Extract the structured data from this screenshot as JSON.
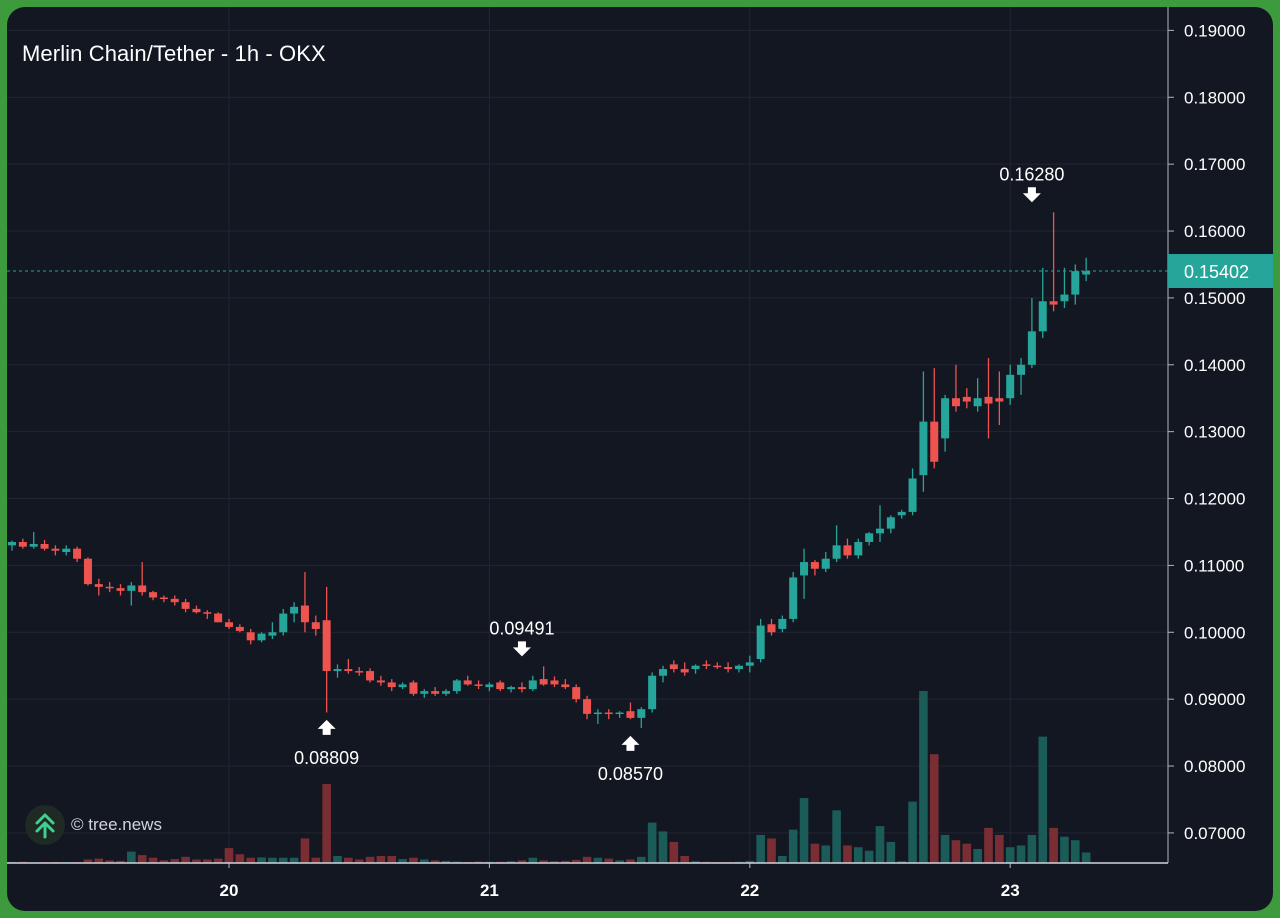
{
  "chart_data": {
    "type": "candlestick",
    "title": "Merlin Chain/Tether - 1h - OKX",
    "watermark": "© tree.news",
    "y_ticks": [
      "0.19000",
      "0.18000",
      "0.17000",
      "0.16000",
      "0.15000",
      "0.14000",
      "0.13000",
      "0.12000",
      "0.11000",
      "0.10000",
      "0.09000",
      "0.08000",
      "0.07000"
    ],
    "ylim": [
      0.0655,
      0.1935
    ],
    "x_ticks": [
      {
        "label": "20",
        "index": 20
      },
      {
        "label": "21",
        "index": 44
      },
      {
        "label": "22",
        "index": 68
      },
      {
        "label": "23",
        "index": 92
      }
    ],
    "last_price": {
      "value": 0.15402,
      "label": "0.15402"
    },
    "annotations": [
      {
        "label": "0.16280",
        "value": 0.1628,
        "index": 94,
        "direction": "down"
      },
      {
        "label": "0.09491",
        "value": 0.09491,
        "index": 47,
        "direction": "down"
      },
      {
        "label": "0.08809",
        "value": 0.08809,
        "index": 29,
        "direction": "up"
      },
      {
        "label": "0.08570",
        "value": 0.0857,
        "index": 57,
        "direction": "up"
      }
    ],
    "candles": [
      [
        0.113,
        0.1137,
        0.1122,
        0.1135,
        0.6
      ],
      [
        0.1135,
        0.114,
        0.1125,
        0.1128,
        0.7
      ],
      [
        0.1128,
        0.115,
        0.1125,
        0.1132,
        0.4
      ],
      [
        0.1132,
        0.1138,
        0.1122,
        0.1125,
        0.5
      ],
      [
        0.1125,
        0.113,
        0.1115,
        0.1122,
        0.6
      ],
      [
        0.112,
        0.113,
        0.1115,
        0.1125,
        0.5
      ],
      [
        0.1125,
        0.1128,
        0.1105,
        0.111,
        0.6
      ],
      [
        0.111,
        0.1112,
        0.107,
        0.1072,
        2.0
      ],
      [
        0.1072,
        0.108,
        0.1055,
        0.1068,
        2.5
      ],
      [
        0.1068,
        0.1075,
        0.106,
        0.1066,
        1.5
      ],
      [
        0.1066,
        0.1072,
        0.1055,
        0.1062,
        1.2
      ],
      [
        0.1062,
        0.1075,
        0.104,
        0.107,
        6.5
      ],
      [
        0.107,
        0.1105,
        0.1055,
        0.106,
        4.5
      ],
      [
        0.106,
        0.1062,
        0.1048,
        0.1052,
        3.0
      ],
      [
        0.1052,
        0.1055,
        0.1045,
        0.105,
        1.5
      ],
      [
        0.105,
        0.1055,
        0.104,
        0.1045,
        2.2
      ],
      [
        0.1045,
        0.105,
        0.103,
        0.1035,
        3.5
      ],
      [
        0.1035,
        0.104,
        0.1028,
        0.103,
        2.0
      ],
      [
        0.103,
        0.1033,
        0.102,
        0.1028,
        2.0
      ],
      [
        0.1028,
        0.103,
        0.1015,
        0.1015,
        2.5
      ],
      [
        0.1015,
        0.102,
        0.1005,
        0.1008,
        8.5
      ],
      [
        0.1008,
        0.1012,
        0.1,
        0.1002,
        5.0
      ],
      [
        0.1,
        0.1005,
        0.0982,
        0.0988,
        3.0
      ],
      [
        0.0988,
        0.1,
        0.0985,
        0.0998,
        3.2
      ],
      [
        0.0995,
        0.1015,
        0.099,
        0.1,
        3.0
      ],
      [
        0.1,
        0.1035,
        0.0995,
        0.1028,
        3.0
      ],
      [
        0.1028,
        0.1045,
        0.1015,
        0.1038,
        3.0
      ],
      [
        0.104,
        0.109,
        0.1,
        0.1015,
        14.0
      ],
      [
        0.1015,
        0.1025,
        0.0995,
        0.1005,
        3.0
      ],
      [
        0.1018,
        0.1068,
        0.088,
        0.0942,
        45.0
      ],
      [
        0.0942,
        0.0952,
        0.0932,
        0.0945,
        4.0
      ],
      [
        0.0945,
        0.096,
        0.0938,
        0.0942,
        3.0
      ],
      [
        0.0942,
        0.0948,
        0.0935,
        0.094,
        2.0
      ],
      [
        0.0942,
        0.0946,
        0.0925,
        0.0928,
        3.5
      ],
      [
        0.0928,
        0.0935,
        0.092,
        0.0925,
        4.0
      ],
      [
        0.0925,
        0.093,
        0.0912,
        0.0918,
        4.0
      ],
      [
        0.0918,
        0.0925,
        0.0915,
        0.0922,
        2.2
      ],
      [
        0.0925,
        0.0928,
        0.0905,
        0.0908,
        3.0
      ],
      [
        0.0908,
        0.0915,
        0.0902,
        0.0912,
        2.0
      ],
      [
        0.0912,
        0.0918,
        0.0905,
        0.0908,
        1.5
      ],
      [
        0.0908,
        0.0915,
        0.0905,
        0.0912,
        1.2
      ],
      [
        0.0912,
        0.093,
        0.0908,
        0.0928,
        0.8
      ],
      [
        0.0928,
        0.0935,
        0.092,
        0.0922,
        0.6
      ],
      [
        0.0922,
        0.0928,
        0.0915,
        0.092,
        0.8
      ],
      [
        0.0918,
        0.0925,
        0.0912,
        0.0922,
        0.7
      ],
      [
        0.0925,
        0.0928,
        0.0912,
        0.0915,
        0.7
      ],
      [
        0.0915,
        0.092,
        0.091,
        0.0918,
        1.0
      ],
      [
        0.0918,
        0.0925,
        0.091,
        0.0915,
        1.5
      ],
      [
        0.0915,
        0.0935,
        0.0912,
        0.0928,
        3.0
      ],
      [
        0.093,
        0.0949,
        0.092,
        0.0922,
        1.5
      ],
      [
        0.0928,
        0.0934,
        0.0918,
        0.0922,
        1.0
      ],
      [
        0.0922,
        0.093,
        0.0915,
        0.0918,
        1.2
      ],
      [
        0.0918,
        0.0922,
        0.0895,
        0.09,
        1.8
      ],
      [
        0.09,
        0.0905,
        0.087,
        0.0878,
        3.5
      ],
      [
        0.0878,
        0.0885,
        0.0863,
        0.088,
        3.0
      ],
      [
        0.088,
        0.0885,
        0.087,
        0.0878,
        2.5
      ],
      [
        0.0878,
        0.0882,
        0.0872,
        0.088,
        1.5
      ],
      [
        0.0882,
        0.0895,
        0.087,
        0.0872,
        2.0
      ],
      [
        0.0872,
        0.0888,
        0.0857,
        0.0885,
        3.5
      ],
      [
        0.0885,
        0.094,
        0.088,
        0.0935,
        23.0
      ],
      [
        0.0935,
        0.095,
        0.0925,
        0.0945,
        18.0
      ],
      [
        0.0952,
        0.0958,
        0.094,
        0.0945,
        12.0
      ],
      [
        0.0945,
        0.0955,
        0.0935,
        0.094,
        4.0
      ],
      [
        0.0945,
        0.0952,
        0.0938,
        0.095,
        1.0
      ],
      [
        0.0952,
        0.0958,
        0.0945,
        0.095,
        0.7
      ],
      [
        0.095,
        0.0955,
        0.0945,
        0.0948,
        0.6
      ],
      [
        0.0948,
        0.0955,
        0.094,
        0.0945,
        0.6
      ],
      [
        0.0945,
        0.0952,
        0.094,
        0.095,
        0.7
      ],
      [
        0.095,
        0.0965,
        0.094,
        0.0955,
        1.2
      ],
      [
        0.096,
        0.102,
        0.0955,
        0.101,
        16.0
      ],
      [
        0.1012,
        0.102,
        0.0995,
        0.1,
        14.0
      ],
      [
        0.1005,
        0.1025,
        0.1,
        0.102,
        4.0
      ],
      [
        0.102,
        0.109,
        0.1015,
        0.1082,
        19.0
      ],
      [
        0.1085,
        0.1125,
        0.105,
        0.1105,
        37.0
      ],
      [
        0.1105,
        0.1108,
        0.1085,
        0.1095,
        11.0
      ],
      [
        0.1095,
        0.112,
        0.109,
        0.111,
        10.0
      ],
      [
        0.111,
        0.116,
        0.1105,
        0.113,
        30.0
      ],
      [
        0.113,
        0.114,
        0.111,
        0.1115,
        10.0
      ],
      [
        0.1115,
        0.114,
        0.111,
        0.1135,
        9.0
      ],
      [
        0.1135,
        0.115,
        0.113,
        0.1148,
        7.0
      ],
      [
        0.1148,
        0.119,
        0.1135,
        0.1155,
        21.0
      ],
      [
        0.1155,
        0.1175,
        0.1148,
        0.1172,
        12.0
      ],
      [
        0.1175,
        0.1183,
        0.117,
        0.118,
        1.0
      ],
      [
        0.118,
        0.1245,
        0.1175,
        0.123,
        35.0
      ],
      [
        0.1235,
        0.139,
        0.121,
        0.1315,
        98.0
      ],
      [
        0.1315,
        0.1395,
        0.1245,
        0.1255,
        62.0
      ],
      [
        0.129,
        0.1355,
        0.127,
        0.135,
        16.0
      ],
      [
        0.135,
        0.14,
        0.133,
        0.1338,
        13.0
      ],
      [
        0.1352,
        0.1365,
        0.1335,
        0.1345,
        11.0
      ],
      [
        0.1338,
        0.138,
        0.133,
        0.135,
        8.0
      ],
      [
        0.1352,
        0.141,
        0.129,
        0.1342,
        20.0
      ],
      [
        0.135,
        0.139,
        0.131,
        0.1345,
        16.0
      ],
      [
        0.135,
        0.14,
        0.134,
        0.1385,
        9.0
      ],
      [
        0.1385,
        0.141,
        0.1355,
        0.14,
        10.0
      ],
      [
        0.14,
        0.15,
        0.1395,
        0.145,
        16.0
      ],
      [
        0.145,
        0.1545,
        0.144,
        0.1495,
        72.0
      ],
      [
        0.1495,
        0.1628,
        0.148,
        0.149,
        20.0
      ],
      [
        0.1495,
        0.1545,
        0.1485,
        0.1505,
        15.0
      ],
      [
        0.1505,
        0.155,
        0.149,
        0.154,
        13.0
      ],
      [
        0.1535,
        0.156,
        0.1525,
        0.154,
        6.0
      ]
    ]
  }
}
